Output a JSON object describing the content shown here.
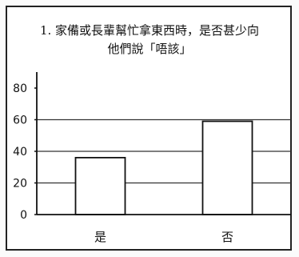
{
  "chart_data": {
    "type": "bar",
    "title_lines": [
      "1. 家備或長輩幫忙拿東西時，是否甚少向",
      "他們說「唔該」"
    ],
    "categories": [
      "是",
      "否"
    ],
    "values": [
      36,
      59
    ],
    "yticks": [
      0,
      20,
      40,
      60,
      80
    ],
    "ylim": [
      0,
      80
    ],
    "grid": true,
    "xlabel": "",
    "ylabel": ""
  }
}
